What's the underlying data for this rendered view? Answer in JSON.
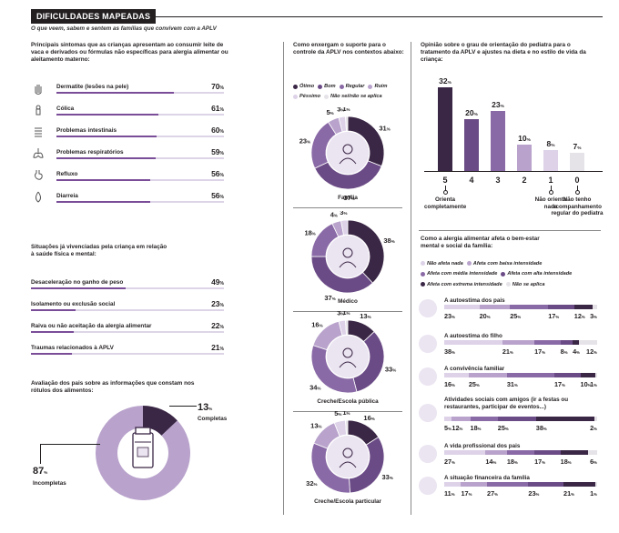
{
  "header": {
    "title": "DIFICULDADES MAPEADAS",
    "subtitle": "O que veem, sabem e sentem as famílias que convivem com a APLV"
  },
  "colors": {
    "dark": "#3a2645",
    "mid": "#6b4b86",
    "regular": "#8a6aa6",
    "light": "#b9a3cc",
    "pale": "#ddd2e8",
    "gray": "#e6e3e8",
    "accent": "#7a4d98"
  },
  "symptoms": {
    "title": "Principais sintomas que as crianças apresentam ao consumir leite de vaca e derivados ou fórmulas não específicas para alergia alimentar ou aleitamento materno:",
    "items": [
      {
        "icon": "hand-icon",
        "label": "Dermatite (lesões na pele)",
        "value": "70",
        "pct": 70
      },
      {
        "icon": "baby-icon",
        "label": "Cólica",
        "value": "61",
        "pct": 61
      },
      {
        "icon": "intestine-icon",
        "label": "Problemas intestinais",
        "value": "60",
        "pct": 60
      },
      {
        "icon": "lungs-icon",
        "label": "Problemas respiratórios",
        "value": "59",
        "pct": 59
      },
      {
        "icon": "stomach-icon",
        "label": "Refluxo",
        "value": "56",
        "pct": 56
      },
      {
        "icon": "drop-icon",
        "label": "Diarreia",
        "value": "56",
        "pct": 56
      }
    ]
  },
  "situations": {
    "title": "Situações já vivenciadas pela criança em relação à saúde física e mental:",
    "items": [
      {
        "label": "Desaceleração no ganho de peso",
        "value": "49",
        "pct": 49
      },
      {
        "label": "Isolamento ou exclusão social",
        "value": "23",
        "pct": 23
      },
      {
        "label": "Raiva ou não aceitação da alergia alimentar",
        "value": "22",
        "pct": 22
      },
      {
        "label": "Traumas relacionados à APLV",
        "value": "21",
        "pct": 21
      }
    ]
  },
  "labels": {
    "title": "Avaliação dos pais sobre as informações que constam nos rótulos dos alimentos:",
    "complete_value": "13",
    "complete_label": "Completas",
    "complete_pct": 13,
    "incomplete_value": "87",
    "incomplete_label": "Incompletas",
    "incomplete_pct": 87
  },
  "support": {
    "title": "Como enxergam o suporte para o controle da APLV nos contextos abaixo:",
    "legend": [
      {
        "label": "Ótimo",
        "color": "#3a2645"
      },
      {
        "label": "Bom",
        "color": "#6b4b86"
      },
      {
        "label": "Regular",
        "color": "#8a6aa6"
      },
      {
        "label": "Ruim",
        "color": "#b9a3cc"
      },
      {
        "label": "Péssimo",
        "color": "#ddd2e8"
      },
      {
        "label": "Não sei/não se aplica",
        "color": "#e6e3e8"
      }
    ],
    "donuts": [
      {
        "name": "Família",
        "icon": "family-icon",
        "values": [
          31,
          37,
          23,
          5,
          3,
          1
        ],
        "labels": [
          "31",
          "37",
          "23",
          "5",
          "3",
          "1"
        ]
      },
      {
        "name": "Médico",
        "icon": "doctor-icon",
        "values": [
          38,
          37,
          18,
          4,
          3,
          0
        ],
        "labels": [
          "38",
          "37",
          "18",
          "4",
          "3",
          ""
        ]
      },
      {
        "name": "Creche/Escola pública",
        "icon": "public-school-icon",
        "values": [
          13,
          33,
          34,
          16,
          3,
          1
        ],
        "labels": [
          "13",
          "33",
          "34",
          "16",
          "3",
          "1"
        ]
      },
      {
        "name": "Creche/Escola particular",
        "icon": "private-school-icon",
        "values": [
          16,
          33,
          32,
          13,
          5,
          1
        ],
        "labels": [
          "16",
          "33",
          "32",
          "13",
          "5",
          "1"
        ]
      }
    ]
  },
  "chart_data": {
    "type": "bar",
    "title": "Opinião sobre o grau de orientação do pediatra para o tratamento da APLV e ajustes na dieta e no estilo de vida da criança:",
    "categories": [
      "5",
      "4",
      "3",
      "2",
      "1",
      "0"
    ],
    "values": [
      32,
      20,
      23,
      10,
      8,
      7
    ],
    "value_labels": [
      "32",
      "20",
      "23",
      "10",
      "8",
      "7"
    ],
    "category_notes": [
      {
        "category": "5",
        "text": "Orienta completamente"
      },
      {
        "category": "1",
        "text": "Não orienta nada"
      },
      {
        "category": "0",
        "text": "Não tenho acompanhamento regular do pediatra"
      }
    ],
    "ylim": [
      0,
      35
    ]
  },
  "wellbeing": {
    "title": "Como a alergia alimentar afeta o bem-estar mental e social da família:",
    "legend": [
      {
        "label": "Não afeta nada",
        "color": "#ddd2e8"
      },
      {
        "label": "Afeta com baixa intensidade",
        "color": "#b9a3cc"
      },
      {
        "label": "Afeta com média intensidade",
        "color": "#8a6aa6"
      },
      {
        "label": "Afeta com alta intensidade",
        "color": "#6b4b86"
      },
      {
        "label": "Afeta com extrema intensidade",
        "color": "#3a2645"
      },
      {
        "label": "Não se aplica",
        "color": "#e6e3e8"
      }
    ],
    "rows": [
      {
        "label": "A autoestima dos pais",
        "icon": "parent-icon",
        "values": [
          23,
          20,
          25,
          17,
          12,
          3
        ],
        "labels": [
          "23",
          "20",
          "25",
          "17",
          "12",
          "3"
        ]
      },
      {
        "label": "A autoestima do filho",
        "icon": "child-icon",
        "values": [
          38,
          21,
          17,
          8,
          4,
          12
        ],
        "labels": [
          "38",
          "21",
          "17",
          "8",
          "4",
          "12"
        ]
      },
      {
        "label": "A convivência familiar",
        "icon": "family-group-icon",
        "values": [
          16,
          25,
          31,
          17,
          10,
          1
        ],
        "labels": [
          "16",
          "25",
          "31",
          "17",
          "10",
          "1"
        ]
      },
      {
        "label": "Atividades sociais com amigos (ir a festas ou restaurantes, participar de eventos...)",
        "icon": "party-icon",
        "values": [
          5,
          12,
          18,
          25,
          38,
          2
        ],
        "labels": [
          "5",
          "12",
          "18",
          "25",
          "38",
          "2"
        ]
      },
      {
        "label": "A vida profissional dos pais",
        "icon": "briefcase-icon",
        "values": [
          27,
          14,
          18,
          17,
          18,
          6
        ],
        "labels": [
          "27",
          "14",
          "18",
          "17",
          "18",
          "6"
        ]
      },
      {
        "label": "A situação financeira da família",
        "icon": "money-icon",
        "values": [
          11,
          17,
          27,
          23,
          21,
          1
        ],
        "labels": [
          "11",
          "17",
          "27",
          "23",
          "21",
          "1"
        ]
      }
    ]
  }
}
